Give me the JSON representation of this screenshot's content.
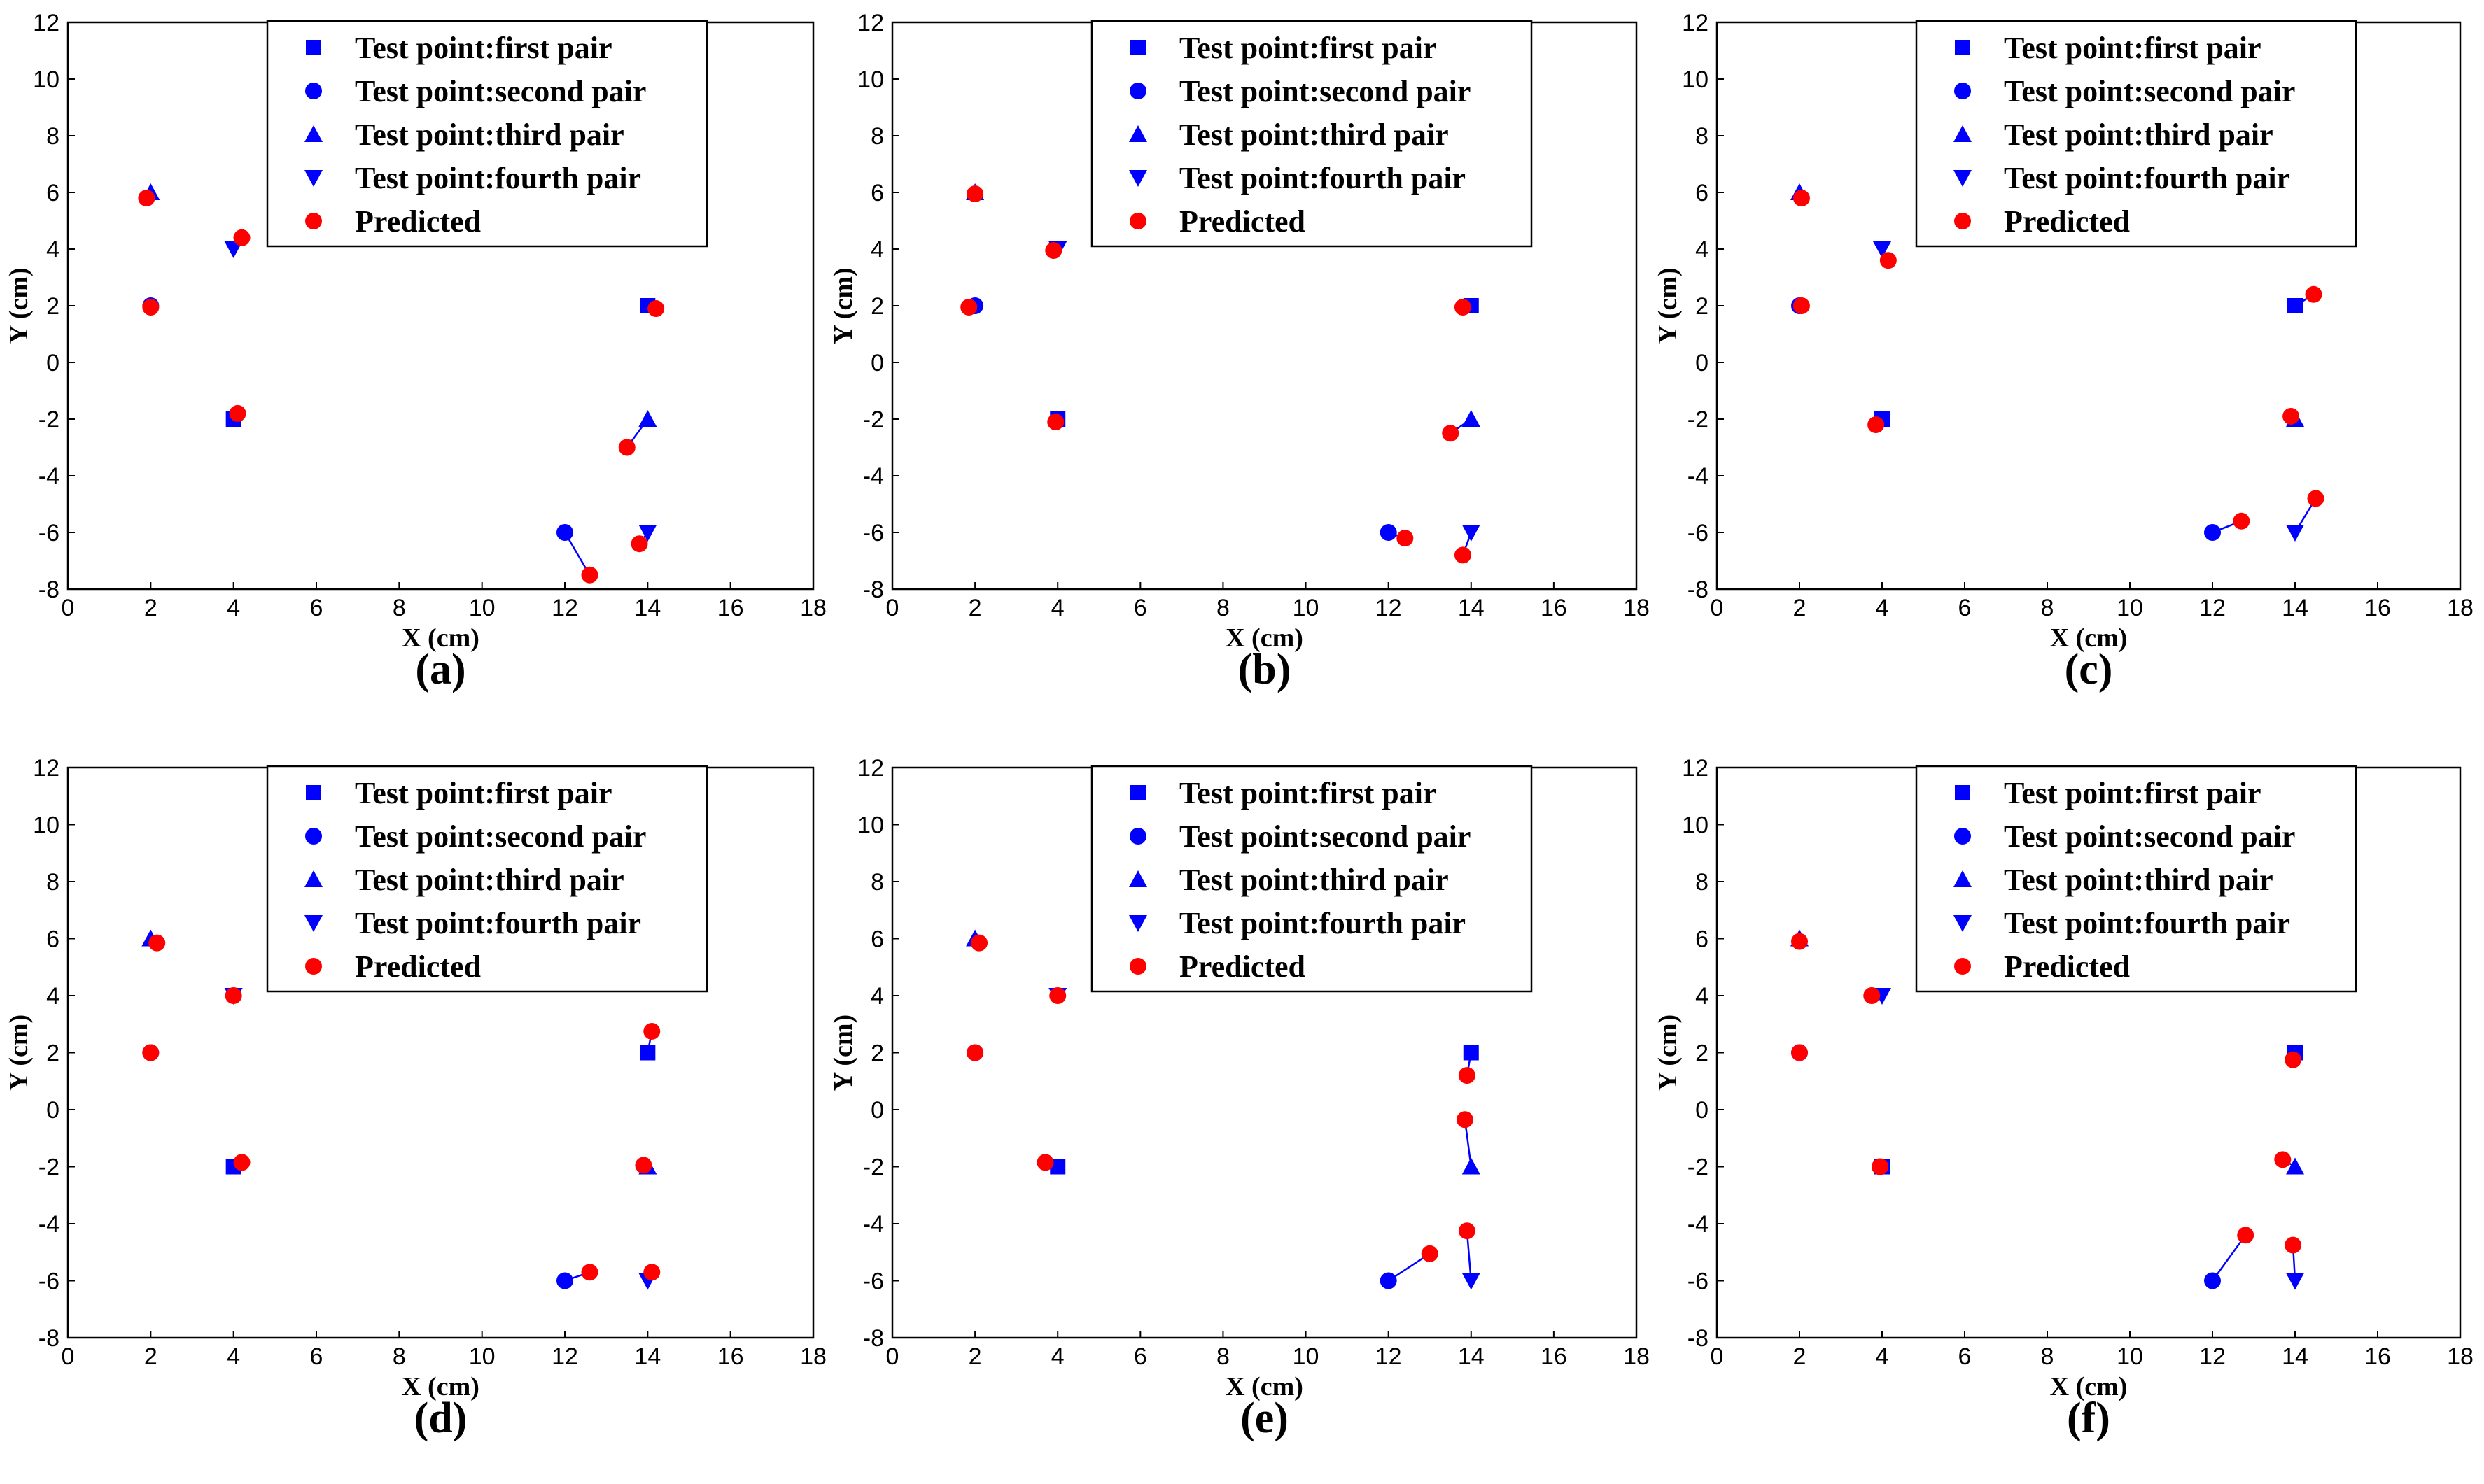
{
  "figure": {
    "legend_entries": [
      {
        "label": "Test point:first pair",
        "marker": "square",
        "color": "#0000ff"
      },
      {
        "label": "Test point:second pair",
        "marker": "circle",
        "color": "#0000ff"
      },
      {
        "label": "Test point:third pair",
        "marker": "triangle-up",
        "color": "#0000ff"
      },
      {
        "label": "Test point:fourth pair",
        "marker": "triangle-down",
        "color": "#0000ff"
      },
      {
        "label": "Predicted",
        "marker": "circle",
        "color": "#ff0000"
      }
    ],
    "colors": {
      "test": "#0000ff",
      "predicted": "#ff0000",
      "line": "#0000ff"
    }
  },
  "chart_data": [
    {
      "type": "scatter",
      "panel_label": "(a)",
      "xlabel": "X (cm)",
      "ylabel": "Y (cm)",
      "xlim": [
        0,
        18
      ],
      "ylim": [
        -8,
        12
      ],
      "xticks": [
        0,
        2,
        4,
        6,
        8,
        10,
        12,
        14,
        16,
        18
      ],
      "yticks": [
        -8,
        -6,
        -4,
        -2,
        0,
        2,
        4,
        6,
        8,
        10,
        12
      ],
      "legend_position": "top-center",
      "series": [
        {
          "name": "Test point:first pair",
          "marker": "square",
          "points": [
            [
              4,
              -2
            ],
            [
              14,
              2
            ]
          ]
        },
        {
          "name": "Test point:second pair",
          "marker": "circle",
          "points": [
            [
              2,
              2
            ],
            [
              12,
              -6
            ]
          ]
        },
        {
          "name": "Test point:third pair",
          "marker": "triangle-up",
          "points": [
            [
              2,
              6
            ],
            [
              14,
              -2
            ]
          ]
        },
        {
          "name": "Test point:fourth pair",
          "marker": "triangle-down",
          "points": [
            [
              4,
              4
            ],
            [
              14,
              -6
            ]
          ]
        },
        {
          "name": "Predicted",
          "marker": "circle",
          "points": [
            [
              4.1,
              -1.8
            ],
            [
              14.2,
              1.9
            ],
            [
              2.0,
              1.95
            ],
            [
              12.6,
              -7.5
            ],
            [
              1.9,
              5.8
            ],
            [
              13.5,
              -3.0
            ],
            [
              4.2,
              4.4
            ],
            [
              13.8,
              -6.4
            ]
          ]
        }
      ]
    },
    {
      "type": "scatter",
      "panel_label": "(b)",
      "xlabel": "X (cm)",
      "ylabel": "Y (cm)",
      "xlim": [
        0,
        18
      ],
      "ylim": [
        -8,
        12
      ],
      "xticks": [
        0,
        2,
        4,
        6,
        8,
        10,
        12,
        14,
        16,
        18
      ],
      "yticks": [
        -8,
        -6,
        -4,
        -2,
        0,
        2,
        4,
        6,
        8,
        10,
        12
      ],
      "legend_position": "top-center",
      "series": [
        {
          "name": "Test point:first pair",
          "marker": "square",
          "points": [
            [
              4,
              -2
            ],
            [
              14,
              2
            ]
          ]
        },
        {
          "name": "Test point:second pair",
          "marker": "circle",
          "points": [
            [
              2,
              2
            ],
            [
              12,
              -6
            ]
          ]
        },
        {
          "name": "Test point:third pair",
          "marker": "triangle-up",
          "points": [
            [
              2,
              6
            ],
            [
              14,
              -2
            ]
          ]
        },
        {
          "name": "Test point:fourth pair",
          "marker": "triangle-down",
          "points": [
            [
              4,
              4
            ],
            [
              14,
              -6
            ]
          ]
        },
        {
          "name": "Predicted",
          "marker": "circle",
          "points": [
            [
              3.95,
              -2.1
            ],
            [
              13.8,
              1.95
            ],
            [
              1.85,
              1.95
            ],
            [
              12.4,
              -6.2
            ],
            [
              2.0,
              5.95
            ],
            [
              13.5,
              -2.5
            ],
            [
              3.9,
              3.95
            ],
            [
              13.8,
              -6.8
            ]
          ]
        }
      ]
    },
    {
      "type": "scatter",
      "panel_label": "(c)",
      "xlabel": "X (cm)",
      "ylabel": "Y (cm)",
      "xlim": [
        0,
        18
      ],
      "ylim": [
        -8,
        12
      ],
      "xticks": [
        0,
        2,
        4,
        6,
        8,
        10,
        12,
        14,
        16,
        18
      ],
      "yticks": [
        -8,
        -6,
        -4,
        -2,
        0,
        2,
        4,
        6,
        8,
        10,
        12
      ],
      "legend_position": "top-center",
      "series": [
        {
          "name": "Test point:first pair",
          "marker": "square",
          "points": [
            [
              4,
              -2
            ],
            [
              14,
              2
            ]
          ]
        },
        {
          "name": "Test point:second pair",
          "marker": "circle",
          "points": [
            [
              2,
              2
            ],
            [
              12,
              -6
            ]
          ]
        },
        {
          "name": "Test point:third pair",
          "marker": "triangle-up",
          "points": [
            [
              2,
              6
            ],
            [
              14,
              -2
            ]
          ]
        },
        {
          "name": "Test point:fourth pair",
          "marker": "triangle-down",
          "points": [
            [
              4,
              4
            ],
            [
              14,
              -6
            ]
          ]
        },
        {
          "name": "Predicted",
          "marker": "circle",
          "points": [
            [
              3.85,
              -2.2
            ],
            [
              14.45,
              2.4
            ],
            [
              2.05,
              2.0
            ],
            [
              12.7,
              -5.6
            ],
            [
              2.05,
              5.8
            ],
            [
              13.9,
              -1.9
            ],
            [
              4.15,
              3.6
            ],
            [
              14.5,
              -4.8
            ]
          ]
        }
      ]
    },
    {
      "type": "scatter",
      "panel_label": "(d)",
      "xlabel": "X (cm)",
      "ylabel": "Y (cm)",
      "xlim": [
        0,
        18
      ],
      "ylim": [
        -8,
        12
      ],
      "xticks": [
        0,
        2,
        4,
        6,
        8,
        10,
        12,
        14,
        16,
        18
      ],
      "yticks": [
        -8,
        -6,
        -4,
        -2,
        0,
        2,
        4,
        6,
        8,
        10,
        12
      ],
      "legend_position": "top-center",
      "series": [
        {
          "name": "Test point:first pair",
          "marker": "square",
          "points": [
            [
              4,
              -2
            ],
            [
              14,
              2
            ]
          ]
        },
        {
          "name": "Test point:second pair",
          "marker": "circle",
          "points": [
            [
              2,
              2
            ],
            [
              12,
              -6
            ]
          ]
        },
        {
          "name": "Test point:third pair",
          "marker": "triangle-up",
          "points": [
            [
              2,
              6
            ],
            [
              14,
              -2
            ]
          ]
        },
        {
          "name": "Test point:fourth pair",
          "marker": "triangle-down",
          "points": [
            [
              4,
              4
            ],
            [
              14,
              -6
            ]
          ]
        },
        {
          "name": "Predicted",
          "marker": "circle",
          "points": [
            [
              4.2,
              -1.85
            ],
            [
              14.1,
              2.75
            ],
            [
              2.0,
              2.0
            ],
            [
              12.6,
              -5.7
            ],
            [
              2.15,
              5.85
            ],
            [
              13.9,
              -1.95
            ],
            [
              4.0,
              4.0
            ],
            [
              14.1,
              -5.7
            ]
          ]
        }
      ]
    },
    {
      "type": "scatter",
      "panel_label": "(e)",
      "xlabel": "X (cm)",
      "ylabel": "Y (cm)",
      "xlim": [
        0,
        18
      ],
      "ylim": [
        -8,
        12
      ],
      "xticks": [
        0,
        2,
        4,
        6,
        8,
        10,
        12,
        14,
        16,
        18
      ],
      "yticks": [
        -8,
        -6,
        -4,
        -2,
        0,
        2,
        4,
        6,
        8,
        10,
        12
      ],
      "legend_position": "top-center",
      "series": [
        {
          "name": "Test point:first pair",
          "marker": "square",
          "points": [
            [
              4,
              -2
            ],
            [
              14,
              2
            ]
          ]
        },
        {
          "name": "Test point:second pair",
          "marker": "circle",
          "points": [
            [
              2,
              2
            ],
            [
              12,
              -6
            ]
          ]
        },
        {
          "name": "Test point:third pair",
          "marker": "triangle-up",
          "points": [
            [
              2,
              6
            ],
            [
              14,
              -2
            ]
          ]
        },
        {
          "name": "Test point:fourth pair",
          "marker": "triangle-down",
          "points": [
            [
              4,
              4
            ],
            [
              14,
              -6
            ]
          ]
        },
        {
          "name": "Predicted",
          "marker": "circle",
          "points": [
            [
              3.7,
              -1.85
            ],
            [
              13.9,
              1.2
            ],
            [
              2.0,
              2.0
            ],
            [
              13.0,
              -5.05
            ],
            [
              2.1,
              5.85
            ],
            [
              13.85,
              -0.35
            ],
            [
              4.0,
              4.0
            ],
            [
              13.9,
              -4.25
            ]
          ]
        }
      ]
    },
    {
      "type": "scatter",
      "panel_label": "(f)",
      "xlabel": "X (cm)",
      "ylabel": "Y (cm)",
      "xlim": [
        0,
        18
      ],
      "ylim": [
        -8,
        12
      ],
      "xticks": [
        0,
        2,
        4,
        6,
        8,
        10,
        12,
        14,
        16,
        18
      ],
      "yticks": [
        -8,
        -6,
        -4,
        -2,
        0,
        2,
        4,
        6,
        8,
        10,
        12
      ],
      "legend_position": "top-center",
      "series": [
        {
          "name": "Test point:first pair",
          "marker": "square",
          "points": [
            [
              4,
              -2
            ],
            [
              14,
              2
            ]
          ]
        },
        {
          "name": "Test point:second pair",
          "marker": "circle",
          "points": [
            [
              2,
              2
            ],
            [
              12,
              -6
            ]
          ]
        },
        {
          "name": "Test point:third pair",
          "marker": "triangle-up",
          "points": [
            [
              2,
              6
            ],
            [
              14,
              -2
            ]
          ]
        },
        {
          "name": "Test point:fourth pair",
          "marker": "triangle-down",
          "points": [
            [
              4,
              4
            ],
            [
              14,
              -6
            ]
          ]
        },
        {
          "name": "Predicted",
          "marker": "circle",
          "points": [
            [
              3.95,
              -2.0
            ],
            [
              13.95,
              1.75
            ],
            [
              2.0,
              2.0
            ],
            [
              12.8,
              -4.4
            ],
            [
              2.0,
              5.9
            ],
            [
              13.7,
              -1.75
            ],
            [
              3.75,
              4.0
            ],
            [
              13.95,
              -4.75
            ]
          ]
        }
      ]
    }
  ]
}
